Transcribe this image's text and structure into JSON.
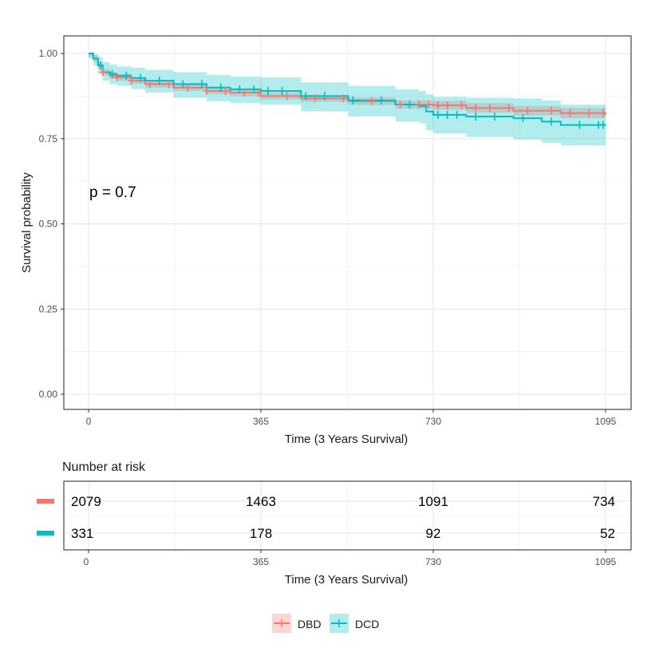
{
  "chart_data": {
    "type": "line",
    "subtype": "kaplan-meier",
    "pvalue_label": "p = 0.7",
    "ylabel": "Survival probability",
    "xlabel": "Time (3 Years Survival)",
    "ylim": [
      0,
      1
    ],
    "xlim": [
      0,
      1095
    ],
    "y_ticks": [
      {
        "value": 0.0,
        "label": "0.00"
      },
      {
        "value": 0.25,
        "label": "0.25"
      },
      {
        "value": 0.5,
        "label": "0.50"
      },
      {
        "value": 0.75,
        "label": "0.75"
      },
      {
        "value": 1.0,
        "label": "1.00"
      }
    ],
    "x_ticks": [
      {
        "value": 0,
        "label": "0"
      },
      {
        "value": 365,
        "label": "365"
      },
      {
        "value": 730,
        "label": "730"
      },
      {
        "value": 1095,
        "label": "1095"
      }
    ],
    "grid": true,
    "legend_position": "bottom",
    "series": [
      {
        "name": "DBD",
        "color": "#F8766D",
        "band_color": "#F8766D",
        "x": [
          0,
          10,
          20,
          30,
          45,
          60,
          90,
          120,
          180,
          250,
          300,
          365,
          450,
          550,
          650,
          730,
          800,
          900,
          1000,
          1095
        ],
        "y": [
          1.0,
          0.985,
          0.965,
          0.945,
          0.935,
          0.93,
          0.92,
          0.91,
          0.9,
          0.89,
          0.885,
          0.875,
          0.868,
          0.86,
          0.85,
          0.848,
          0.84,
          0.832,
          0.825,
          0.82
        ],
        "lower": [
          0.99,
          0.975,
          0.955,
          0.935,
          0.925,
          0.92,
          0.91,
          0.9,
          0.89,
          0.88,
          0.875,
          0.865,
          0.858,
          0.849,
          0.838,
          0.835,
          0.826,
          0.818,
          0.81,
          0.805
        ],
        "upper": [
          1.0,
          0.995,
          0.975,
          0.955,
          0.945,
          0.94,
          0.93,
          0.92,
          0.91,
          0.9,
          0.895,
          0.885,
          0.878,
          0.871,
          0.862,
          0.861,
          0.854,
          0.846,
          0.84,
          0.835
        ],
        "censor_times": [
          30,
          60,
          90,
          130,
          170,
          210,
          250,
          290,
          330,
          360,
          420,
          480,
          540,
          600,
          660,
          700,
          720,
          740,
          760,
          790,
          820,
          850,
          890,
          930,
          980,
          1020,
          1060,
          1090
        ]
      },
      {
        "name": "DCD",
        "color": "#00BFC4",
        "band_color": "#00BFC4",
        "x": [
          0,
          10,
          20,
          30,
          45,
          60,
          90,
          120,
          180,
          250,
          300,
          365,
          450,
          550,
          650,
          700,
          715,
          730,
          800,
          900,
          960,
          1000,
          1095
        ],
        "y": [
          1.0,
          0.985,
          0.965,
          0.945,
          0.94,
          0.935,
          0.928,
          0.92,
          0.91,
          0.9,
          0.895,
          0.89,
          0.875,
          0.862,
          0.85,
          0.845,
          0.83,
          0.82,
          0.815,
          0.81,
          0.8,
          0.79,
          0.79
        ],
        "lower": [
          0.985,
          0.965,
          0.94,
          0.92,
          0.91,
          0.905,
          0.895,
          0.885,
          0.87,
          0.86,
          0.855,
          0.85,
          0.83,
          0.815,
          0.8,
          0.795,
          0.775,
          0.765,
          0.755,
          0.748,
          0.738,
          0.73,
          0.73
        ],
        "upper": [
          1.0,
          0.998,
          0.99,
          0.975,
          0.968,
          0.962,
          0.958,
          0.952,
          0.945,
          0.937,
          0.932,
          0.93,
          0.915,
          0.905,
          0.895,
          0.89,
          0.88,
          0.873,
          0.87,
          0.868,
          0.862,
          0.85,
          0.85
        ],
        "censor_times": [
          25,
          50,
          80,
          110,
          150,
          200,
          240,
          280,
          320,
          350,
          380,
          410,
          460,
          500,
          560,
          620,
          680,
          740,
          760,
          780,
          820,
          860,
          920,
          980,
          1040,
          1080,
          1090
        ]
      }
    ],
    "risk_table": {
      "title": "Number at risk",
      "xlabel": "Time (3 Years Survival)",
      "times": [
        0,
        365,
        730,
        1095
      ],
      "time_labels": [
        "0",
        "365",
        "730",
        "1095"
      ],
      "rows": [
        {
          "name": "DBD",
          "color": "#F8766D",
          "counts": [
            "2079",
            "1463",
            "1091",
            "734"
          ]
        },
        {
          "name": "DCD",
          "color": "#00BFC4",
          "counts": [
            "331",
            "178",
            "92",
            "52"
          ]
        }
      ]
    }
  }
}
